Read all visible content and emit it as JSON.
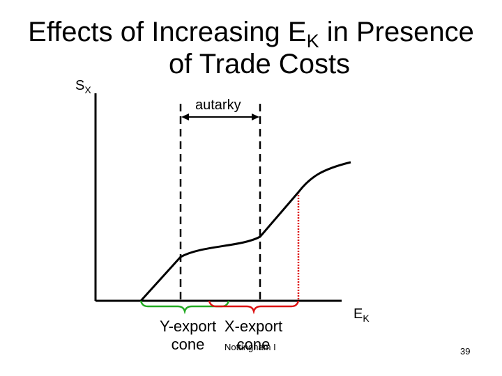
{
  "slide": {
    "title_line1_main": "Effects of Increasing E",
    "title_line1_sub": "K",
    "title_line1_rest": " in Presence",
    "title_line2": "of Trade Costs",
    "footer": "Nottingham I",
    "page_number": "39"
  },
  "diagram": {
    "y_axis_main": "S",
    "y_axis_sub": "X",
    "x_axis_main": "E",
    "x_axis_sub": "K",
    "autarky_label": "autarky",
    "y_cone_line1": "Y-export",
    "y_cone_line2": "cone",
    "x_cone_line1": "X-export",
    "x_cone_line2": "cone",
    "colors": {
      "curve": "#000000",
      "y_export_cone": "#22aa22",
      "x_export_cone": "#dd1111"
    }
  }
}
